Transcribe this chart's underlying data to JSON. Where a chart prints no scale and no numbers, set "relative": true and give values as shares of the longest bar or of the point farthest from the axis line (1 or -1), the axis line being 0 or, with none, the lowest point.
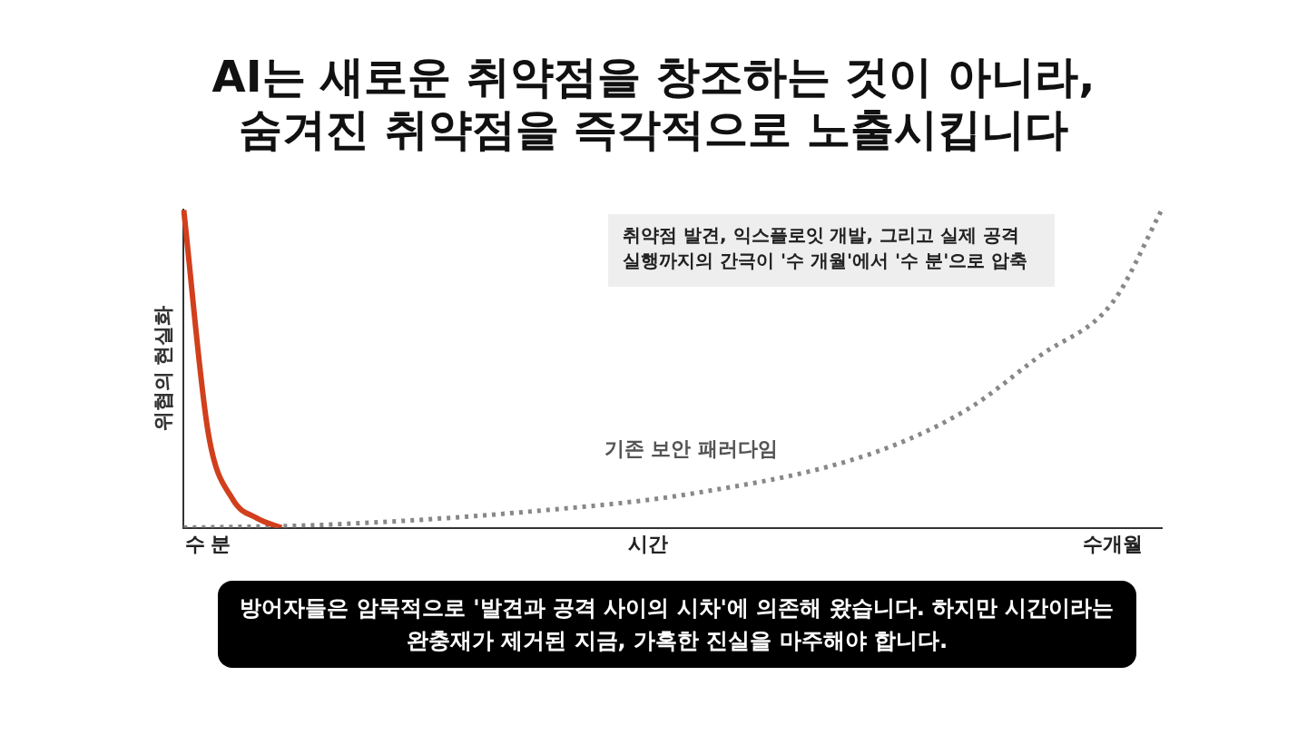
{
  "chart_data": {
    "type": "line",
    "title": [
      "AI는 새로운 취약점을 창조하는 것이 아니라,",
      "숨겨진 취약점을 즉각적으로 노출시킵니다"
    ],
    "ylabel": "위협의 현실화",
    "relative": true,
    "categories": [
      null,
      "수 분",
      null,
      null,
      null,
      null,
      null,
      null,
      null,
      null,
      null,
      null,
      null,
      null,
      null,
      null,
      null,
      null,
      null,
      "시간",
      null,
      null,
      null,
      null,
      null,
      null,
      null,
      null,
      null,
      null,
      null,
      null,
      null,
      null,
      null,
      null,
      null,
      null,
      "수개월",
      null,
      null
    ],
    "series": [
      {
        "color": "#d13f1c",
        "line_style": "solid",
        "values": [
          1,
          0.3,
          0.09,
          0.03,
          0,
          null,
          null,
          null,
          null,
          null,
          null,
          null,
          null,
          null,
          null,
          null,
          null,
          null,
          null,
          null,
          null,
          null,
          null,
          null,
          null,
          null,
          null,
          null,
          null,
          null,
          null,
          null,
          null,
          null,
          null,
          null,
          null,
          null,
          null,
          null,
          null
        ]
      },
      {
        "name": "기존 보안 패러다임",
        "color": "#888888",
        "line_style": "dotted",
        "values": [
          0,
          null,
          null,
          null,
          null,
          null,
          0.01,
          null,
          null,
          null,
          null,
          null,
          null,
          null,
          0.05,
          null,
          null,
          null,
          null,
          null,
          null,
          0.11,
          null,
          null,
          null,
          null,
          null,
          null,
          0.23,
          null,
          null,
          null,
          0.37,
          null,
          null,
          0.54,
          null,
          null,
          0.71,
          null,
          1
        ]
      }
    ],
    "annotations": [
      "취약점 발견, 익스플로잇 개발, 그리고 실제 공격 실행까지의 간극이 '수 개월'에서 '수 분'으로 압축",
      "방어자들은 암묵적으로 '발견과 공격 사이의 시차'에 의존해 왔습니다. 하지만 시간이라는 완충재가 제거된 지금, 가혹한 진실을 마주해야 합니다."
    ],
    "grid": false,
    "legend": false,
    "marker": "none"
  }
}
